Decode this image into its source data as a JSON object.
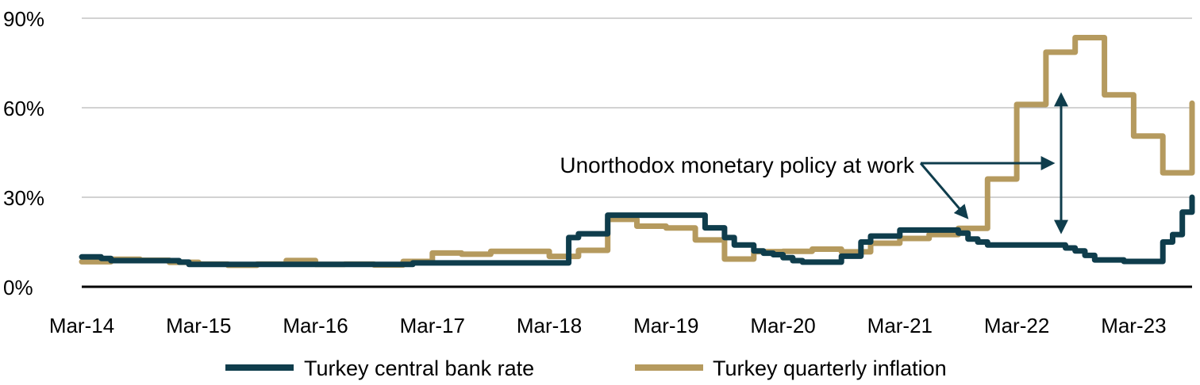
{
  "chart_data": {
    "type": "line",
    "title": "",
    "xlabel": "",
    "ylabel": "",
    "ylim": [
      0,
      90
    ],
    "y_ticks": [
      {
        "value": 0,
        "label": "0%"
      },
      {
        "value": 30,
        "label": "30%"
      },
      {
        "value": 60,
        "label": "60%"
      },
      {
        "value": 90,
        "label": "90%"
      }
    ],
    "x_ticks": [
      "Mar-14",
      "Mar-15",
      "Mar-16",
      "Mar-17",
      "Mar-18",
      "Mar-19",
      "Mar-20",
      "Mar-21",
      "Mar-22",
      "Mar-23"
    ],
    "grid": "horizontal",
    "legend_position": "bottom",
    "x_range": [
      "2014-03",
      "2023-09"
    ],
    "series": [
      {
        "name": "Turkey central bank rate",
        "color": "#0f3d4c",
        "points": [
          [
            "2014-03",
            10
          ],
          [
            "2014-05",
            9.5
          ],
          [
            "2014-06",
            8.75
          ],
          [
            "2015-01",
            8.25
          ],
          [
            "2015-02",
            7.5
          ],
          [
            "2016-03",
            7.5
          ],
          [
            "2017-01",
            8
          ],
          [
            "2017-06",
            8
          ],
          [
            "2018-04",
            8
          ],
          [
            "2018-05",
            16.5
          ],
          [
            "2018-06",
            17.75
          ],
          [
            "2018-09",
            24
          ],
          [
            "2019-06",
            24
          ],
          [
            "2019-07",
            19.75
          ],
          [
            "2019-09",
            16.5
          ],
          [
            "2019-10",
            14
          ],
          [
            "2019-12",
            12
          ],
          [
            "2020-01",
            11.25
          ],
          [
            "2020-02",
            10.75
          ],
          [
            "2020-03",
            9.75
          ],
          [
            "2020-04",
            8.75
          ],
          [
            "2020-05",
            8.25
          ],
          [
            "2020-09",
            10.25
          ],
          [
            "2020-11",
            15
          ],
          [
            "2020-12",
            17
          ],
          [
            "2021-03",
            19
          ],
          [
            "2021-09",
            18
          ],
          [
            "2021-10",
            16
          ],
          [
            "2021-11",
            15
          ],
          [
            "2021-12",
            14
          ],
          [
            "2022-07",
            14
          ],
          [
            "2022-08",
            13
          ],
          [
            "2022-09",
            12
          ],
          [
            "2022-10",
            10.5
          ],
          [
            "2022-11",
            9
          ],
          [
            "2023-02",
            8.5
          ],
          [
            "2023-06",
            8.5
          ],
          [
            "2023-06",
            15
          ],
          [
            "2023-07",
            17.5
          ],
          [
            "2023-08",
            25
          ],
          [
            "2023-09",
            30
          ]
        ]
      },
      {
        "name": "Turkey quarterly inflation",
        "color": "#b59a5e",
        "points": [
          [
            "2014-03",
            8.4
          ],
          [
            "2014-06",
            9.2
          ],
          [
            "2014-09",
            8.9
          ],
          [
            "2014-12",
            8.2
          ],
          [
            "2015-03",
            7.6
          ],
          [
            "2015-06",
            7.2
          ],
          [
            "2015-09",
            7.6
          ],
          [
            "2015-12",
            8.8
          ],
          [
            "2016-03",
            7.5
          ],
          [
            "2016-06",
            7.6
          ],
          [
            "2016-09",
            7.3
          ],
          [
            "2016-12",
            8.5
          ],
          [
            "2017-03",
            11.3
          ],
          [
            "2017-06",
            10.9
          ],
          [
            "2017-09",
            11.9
          ],
          [
            "2017-12",
            11.9
          ],
          [
            "2018-03",
            10.2
          ],
          [
            "2018-06",
            12.2
          ],
          [
            "2018-09",
            22.6
          ],
          [
            "2018-12",
            20.3
          ],
          [
            "2019-03",
            19.7
          ],
          [
            "2019-06",
            15.7
          ],
          [
            "2019-09",
            9.3
          ],
          [
            "2019-12",
            11.8
          ],
          [
            "2020-03",
            11.9
          ],
          [
            "2020-06",
            12.6
          ],
          [
            "2020-09",
            11.7
          ],
          [
            "2020-12",
            14.6
          ],
          [
            "2021-03",
            16.2
          ],
          [
            "2021-06",
            17.5
          ],
          [
            "2021-09",
            19.6
          ],
          [
            "2021-12",
            36.1
          ],
          [
            "2022-03",
            61.1
          ],
          [
            "2022-06",
            78.6
          ],
          [
            "2022-09",
            83.5
          ],
          [
            "2022-12",
            64.3
          ],
          [
            "2023-03",
            50.5
          ],
          [
            "2023-06",
            38.2
          ],
          [
            "2023-09",
            61.5
          ]
        ]
      }
    ],
    "annotations": [
      {
        "text": "Unorthodox monetary policy at work"
      }
    ]
  }
}
